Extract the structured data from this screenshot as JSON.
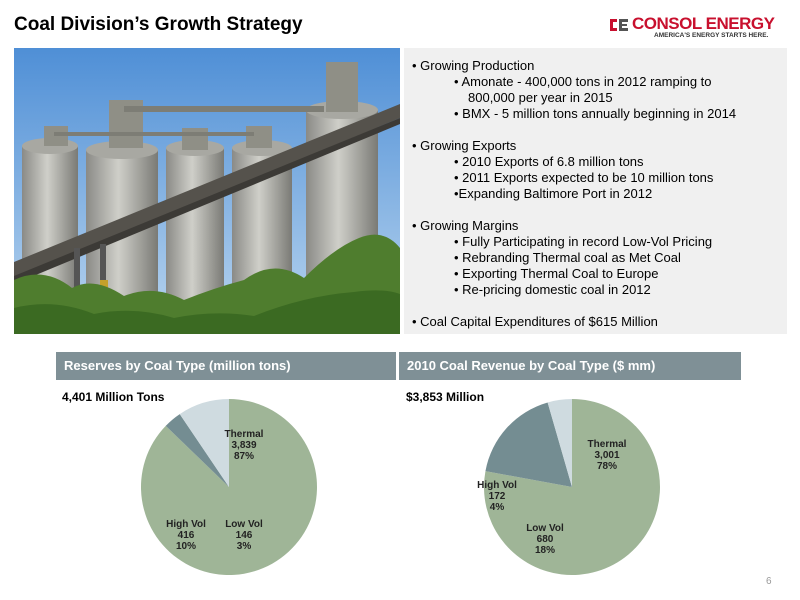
{
  "page": {
    "title": "Coal Division’s Growth Strategy",
    "page_number": "6"
  },
  "logo": {
    "name": "CONSOL ENERGY",
    "tagline": "AMERICA'S ENERGY STARTS HERE."
  },
  "photo": {
    "icon": "coal-silos-photo"
  },
  "bullets": [
    {
      "level": 1,
      "text": "• Growing Production"
    },
    {
      "level": 2,
      "text": "• Amonate - 400,000 tons in 2012 ramping to"
    },
    {
      "level": 3,
      "text": "800,000 per year in 2015"
    },
    {
      "level": 2,
      "text": "• BMX  - 5 million tons annually beginning in 2014"
    },
    {
      "level": 1,
      "text": "• Growing Exports"
    },
    {
      "level": 2,
      "text": "• 2010 Exports of 6.8 million tons"
    },
    {
      "level": 2,
      "text": "• 2011 Exports expected to be 10 million tons"
    },
    {
      "level": 2,
      "text": "•Expanding Baltimore Port in 2012"
    },
    {
      "level": 1,
      "text": "• Growing Margins"
    },
    {
      "level": 2,
      "text": "• Fully Participating in record Low-Vol Pricing"
    },
    {
      "level": 2,
      "text": "• Rebranding Thermal coal as Met Coal"
    },
    {
      "level": 2,
      "text": "• Exporting Thermal Coal to Europe"
    },
    {
      "level": 2,
      "text": "• Re-pricing domestic coal in 2012"
    },
    {
      "level": 1,
      "text": "• Coal Capital Expenditures of $615 Million"
    }
  ],
  "colors": {
    "header_bg": "#7f9096",
    "thermal": "#9fb597",
    "low_vol": "#748d92",
    "high_vol": "#cfdbe0",
    "bullet_box": "#f0f0f0",
    "logo_red": "#c8102e"
  },
  "chart_data": [
    {
      "type": "pie",
      "title": "Reserves by Coal Type (million tons)",
      "subtitle": "4,401 Million Tons",
      "slices": [
        {
          "label": "Thermal",
          "value": 3839,
          "value_text": "3,839",
          "percent": 87,
          "percent_text": "87%"
        },
        {
          "label": "Low Vol",
          "value": 146,
          "value_text": "146",
          "percent": 3,
          "percent_text": "3%"
        },
        {
          "label": "High Vol",
          "value": 416,
          "value_text": "416",
          "percent": 10,
          "percent_text": "10%"
        }
      ]
    },
    {
      "type": "pie",
      "title": "2010 Coal Revenue by Coal Type ($ mm)",
      "subtitle": "$3,853 Million",
      "slices": [
        {
          "label": "Thermal",
          "value": 3001,
          "value_text": "3,001",
          "percent": 78,
          "percent_text": "78%"
        },
        {
          "label": "Low Vol",
          "value": 680,
          "value_text": "680",
          "percent": 18,
          "percent_text": "18%"
        },
        {
          "label": "High Vol",
          "value": 172,
          "value_text": "172",
          "percent": 4,
          "percent_text": "4%"
        }
      ]
    }
  ]
}
